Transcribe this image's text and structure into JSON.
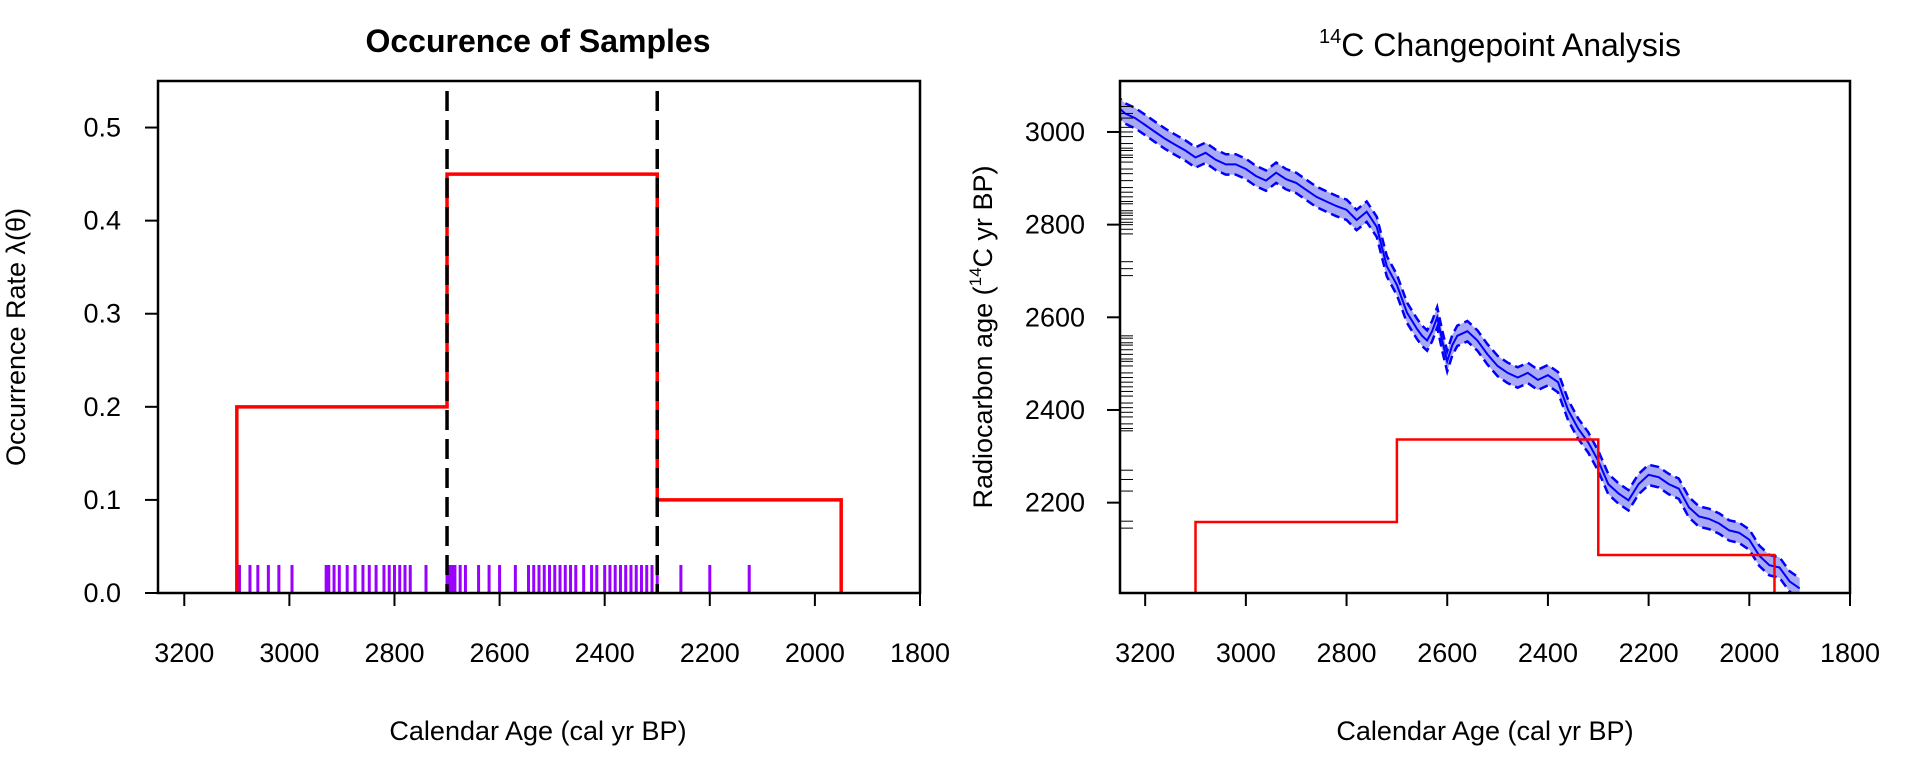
{
  "chart_data": [
    {
      "type": "line",
      "title": "Occurence of Samples",
      "xlabel": "Calendar Age (cal yr BP)",
      "ylabel": "Occurrence Rate λ(θ)",
      "xlim": [
        3250,
        1800
      ],
      "ylim": [
        0,
        0.55
      ],
      "x_ticks": [
        "3200",
        "3000",
        "2800",
        "2600",
        "2400",
        "2200",
        "2000",
        "1800"
      ],
      "y_ticks": [
        "0.0",
        "0.1",
        "0.2",
        "0.3",
        "0.4",
        "0.5"
      ],
      "step_rate": {
        "segments": [
          {
            "from": 3100,
            "to": 2700,
            "rate": 0.2
          },
          {
            "from": 2700,
            "to": 2300,
            "rate": 0.45
          },
          {
            "from": 2300,
            "to": 1950,
            "rate": 0.1
          }
        ],
        "color": "#ff0000"
      },
      "changepoints": [
        2700,
        2300
      ],
      "sample_ages": [
        3095,
        3075,
        3060,
        3040,
        3020,
        2995,
        2930,
        2925,
        2915,
        2905,
        2890,
        2875,
        2860,
        2848,
        2835,
        2820,
        2810,
        2800,
        2790,
        2780,
        2770,
        2740,
        2700,
        2695,
        2690,
        2685,
        2675,
        2665,
        2640,
        2620,
        2600,
        2570,
        2545,
        2535,
        2525,
        2515,
        2505,
        2495,
        2485,
        2475,
        2465,
        2455,
        2440,
        2425,
        2415,
        2400,
        2390,
        2380,
        2370,
        2360,
        2350,
        2340,
        2330,
        2320,
        2310,
        2300,
        2255,
        2200,
        2125
      ],
      "rug_color": "#9900ff"
    },
    {
      "type": "line",
      "title_sup": "14",
      "title": "C Changepoint Analysis",
      "xlabel": "Calendar Age (cal yr BP)",
      "ylabel_pre": "Radiocarbon age (",
      "ylabel_sup": "14",
      "ylabel_post": "C yr BP)",
      "xlim": [
        3250,
        1800
      ],
      "ylim": [
        2005,
        3110
      ],
      "x_ticks": [
        "3200",
        "3000",
        "2800",
        "2600",
        "2400",
        "2200",
        "2000",
        "1800"
      ],
      "y_ticks": [
        "2200",
        "2400",
        "2600",
        "2800",
        "3000"
      ],
      "calibration_curve": {
        "x": [
          3260,
          3240,
          3220,
          3200,
          3180,
          3160,
          3140,
          3120,
          3100,
          3080,
          3060,
          3040,
          3020,
          3000,
          2980,
          2960,
          2940,
          2920,
          2900,
          2880,
          2860,
          2840,
          2820,
          2800,
          2780,
          2760,
          2740,
          2720,
          2700,
          2680,
          2660,
          2650,
          2640,
          2630,
          2620,
          2610,
          2600,
          2590,
          2580,
          2560,
          2540,
          2520,
          2500,
          2480,
          2460,
          2440,
          2420,
          2400,
          2380,
          2360,
          2340,
          2320,
          2300,
          2280,
          2260,
          2240,
          2220,
          2200,
          2180,
          2160,
          2140,
          2120,
          2100,
          2080,
          2060,
          2040,
          2020,
          2000,
          1980,
          1960,
          1940,
          1920,
          1900
        ],
        "y": [
          3060,
          3040,
          3030,
          3015,
          3000,
          2985,
          2972,
          2960,
          2945,
          2955,
          2940,
          2930,
          2930,
          2920,
          2905,
          2895,
          2912,
          2898,
          2890,
          2875,
          2860,
          2850,
          2840,
          2832,
          2810,
          2828,
          2795,
          2710,
          2670,
          2610,
          2575,
          2560,
          2550,
          2570,
          2600,
          2550,
          2505,
          2540,
          2560,
          2570,
          2550,
          2520,
          2495,
          2480,
          2470,
          2480,
          2465,
          2475,
          2460,
          2400,
          2360,
          2330,
          2290,
          2240,
          2220,
          2205,
          2240,
          2260,
          2255,
          2240,
          2230,
          2190,
          2170,
          2165,
          2155,
          2140,
          2135,
          2120,
          2085,
          2065,
          2060,
          2030,
          2015
        ],
        "band_halfwidth": 22,
        "color": "#0000ff",
        "fill": "#a9a9f5"
      },
      "step_rate": {
        "segments": [
          {
            "from": 3100,
            "to": 2700,
            "rate": 0.2
          },
          {
            "from": 2700,
            "to": 2300,
            "rate": 0.45
          },
          {
            "from": 2300,
            "to": 1950,
            "rate": 0.1
          }
        ],
        "color": "#ff0000"
      },
      "radiocarbon_rug": [
        3055,
        3040,
        3030,
        3010,
        3000,
        2990,
        2975,
        2965,
        2960,
        2950,
        2945,
        2935,
        2920,
        2910,
        2895,
        2880,
        2870,
        2860,
        2850,
        2845,
        2830,
        2825,
        2820,
        2812,
        2805,
        2800,
        2790,
        2780,
        2720,
        2705,
        2690,
        2560,
        2555,
        2545,
        2540,
        2530,
        2520,
        2510,
        2505,
        2495,
        2480,
        2470,
        2460,
        2450,
        2440,
        2430,
        2415,
        2405,
        2395,
        2385,
        2370,
        2360,
        2355,
        2270,
        2250,
        2225,
        2160,
        2145
      ],
      "rug_color": "#000000"
    }
  ]
}
